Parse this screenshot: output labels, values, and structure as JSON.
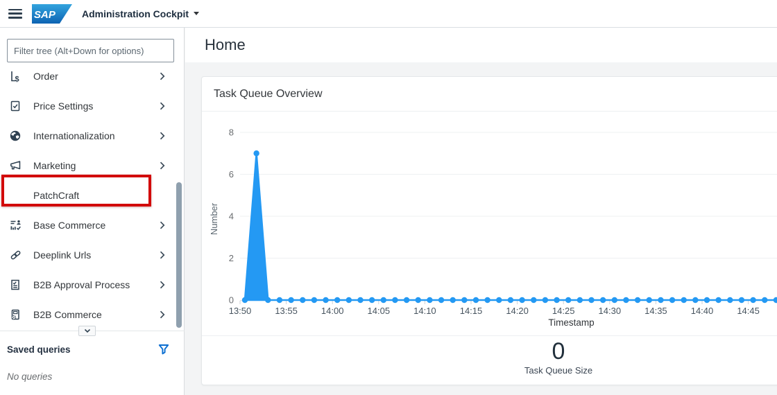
{
  "topbar": {
    "logo_text": "SAP",
    "app_title": "Administration Cockpit"
  },
  "sidebar": {
    "filter_placeholder": "Filter tree (Alt+Down for options)",
    "items": [
      {
        "label": "Order",
        "icon": "order-icon",
        "has_chevron": true,
        "highlighted": false
      },
      {
        "label": "Price Settings",
        "icon": "price-settings-icon",
        "has_chevron": true,
        "highlighted": false
      },
      {
        "label": "Internationalization",
        "icon": "globe-icon",
        "has_chevron": true,
        "highlighted": false
      },
      {
        "label": "Marketing",
        "icon": "megaphone-icon",
        "has_chevron": true,
        "highlighted": false
      },
      {
        "label": "PatchCraft",
        "icon": "none",
        "has_chevron": false,
        "highlighted": true
      },
      {
        "label": "Base Commerce",
        "icon": "base-commerce-icon",
        "has_chevron": true,
        "highlighted": false
      },
      {
        "label": "Deeplink Urls",
        "icon": "link-icon",
        "has_chevron": true,
        "highlighted": false
      },
      {
        "label": "B2B Approval Process",
        "icon": "approval-icon",
        "has_chevron": true,
        "highlighted": false
      },
      {
        "label": "B2B Commerce",
        "icon": "b2b-commerce-icon",
        "has_chevron": true,
        "highlighted": false
      }
    ],
    "saved_queries": {
      "title": "Saved queries",
      "empty_text": "No queries",
      "filter_icon_color": "#0a6ed1"
    }
  },
  "main": {
    "page_title": "Home",
    "card": {
      "title": "Task Queue Overview",
      "stat_value": "0",
      "stat_label": "Task Queue Size"
    }
  },
  "chart_data": {
    "type": "area",
    "title": "Task Queue Overview",
    "xlabel": "Timestamp",
    "ylabel": "Number",
    "ylim": [
      0,
      8
    ],
    "yticks": [
      0,
      2,
      4,
      6,
      8
    ],
    "x_tick_labels": [
      "13:50",
      "13:55",
      "14:00",
      "14:05",
      "14:10",
      "14:15",
      "14:20",
      "14:25",
      "14:30",
      "14:35",
      "14:40",
      "14:45"
    ],
    "points_per_tick_interval": 4,
    "grid": true,
    "legend": false,
    "series": [
      {
        "name": "Task Queue Size",
        "color": "#2499f3",
        "values": [
          0,
          7,
          0,
          0,
          0,
          0,
          0,
          0,
          0,
          0,
          0,
          0,
          0,
          0,
          0,
          0,
          0,
          0,
          0,
          0,
          0,
          0,
          0,
          0,
          0,
          0,
          0,
          0,
          0,
          0,
          0,
          0,
          0,
          0,
          0,
          0,
          0,
          0,
          0,
          0,
          0,
          0,
          0,
          0,
          0,
          0,
          0,
          0,
          0,
          0,
          0,
          0,
          0,
          0,
          0,
          0,
          0,
          0
        ]
      }
    ]
  }
}
